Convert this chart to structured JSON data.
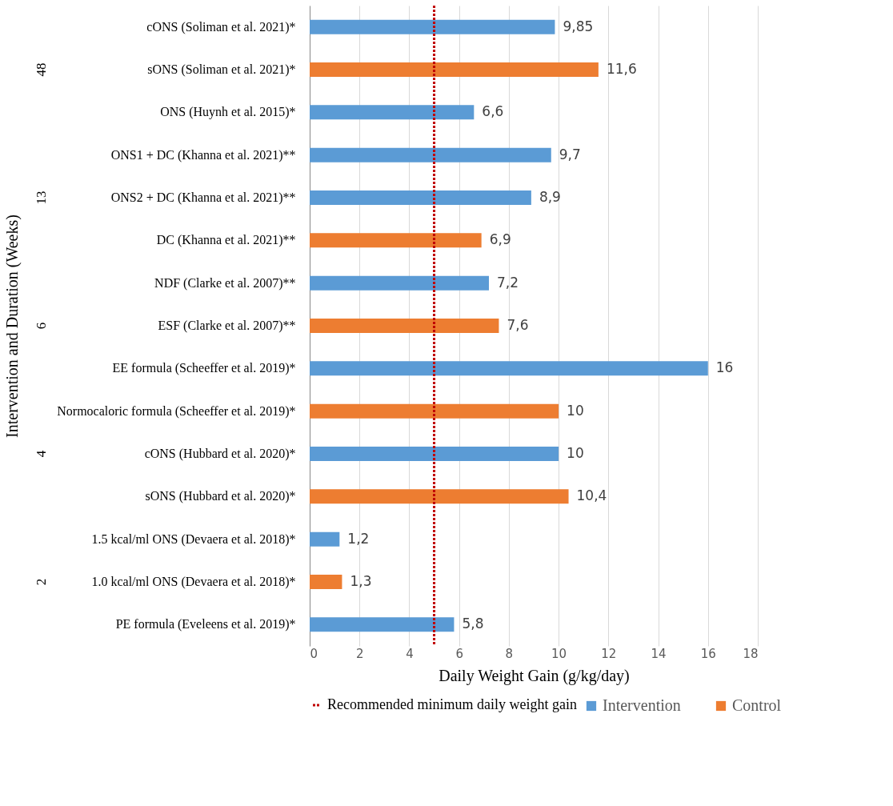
{
  "chart_data": {
    "type": "bar",
    "orientation": "horizontal",
    "xlabel": "Daily Weight Gain (g/kg/day)",
    "ylabel": "Intervention and Duration (Weeks)",
    "categories": [
      "cONS (Soliman et al. 2021)*",
      "sONS (Soliman et al. 2021)*",
      "ONS (Huynh et al. 2015)*",
      "ONS1 + DC (Khanna et al. 2021)**",
      "ONS2 + DC (Khanna et al. 2021)**",
      "DC (Khanna et al. 2021)**",
      "NDF (Clarke et al. 2007)**",
      "ESF (Clarke et al. 2007)**",
      "EE formula (Scheeffer et al. 2019)*",
      "Normocaloric formula (Scheeffer et al. 2019)*",
      "cONS (Hubbard et al. 2020)*",
      "sONS (Hubbard et al. 2020)*",
      "1.5 kcal/ml ONS (Devaera et al. 2018)*",
      "1.0 kcal/ml ONS (Devaera et al. 2018)*",
      "PE formula (Eveleens et al. 2019)*"
    ],
    "series": [
      {
        "name": "Intervention",
        "color": "#5b9bd5",
        "values": [
          9.85,
          null,
          6.6,
          9.7,
          8.9,
          null,
          7.2,
          null,
          16,
          null,
          10,
          null,
          1.2,
          null,
          5.8
        ],
        "value_labels": [
          "9,85",
          null,
          "6,6",
          "9,7",
          "8,9",
          null,
          "7,2",
          null,
          "16",
          null,
          "10",
          null,
          "1,2",
          null,
          "5,8"
        ]
      },
      {
        "name": "Control",
        "color": "#ed7d31",
        "values": [
          null,
          11.6,
          null,
          null,
          null,
          6.9,
          null,
          7.6,
          null,
          10,
          null,
          10.4,
          null,
          1.3,
          null
        ],
        "value_labels": [
          null,
          "11,6",
          null,
          null,
          null,
          "6,9",
          null,
          "7,6",
          null,
          "10",
          null,
          "10,4",
          null,
          "1,3",
          null
        ]
      }
    ],
    "xlim": [
      0,
      18
    ],
    "xticks": [
      0,
      2,
      4,
      6,
      8,
      10,
      12,
      14,
      16,
      18
    ],
    "grid": "x",
    "legend": "bottom",
    "ref_lines": [
      {
        "axis": "x",
        "value": 5,
        "label": "Recommended minimum daily weight gain",
        "color": "#c00000",
        "line_style": "dotted"
      }
    ],
    "annotations": [
      "48",
      "13",
      "6",
      "4",
      "2"
    ]
  }
}
